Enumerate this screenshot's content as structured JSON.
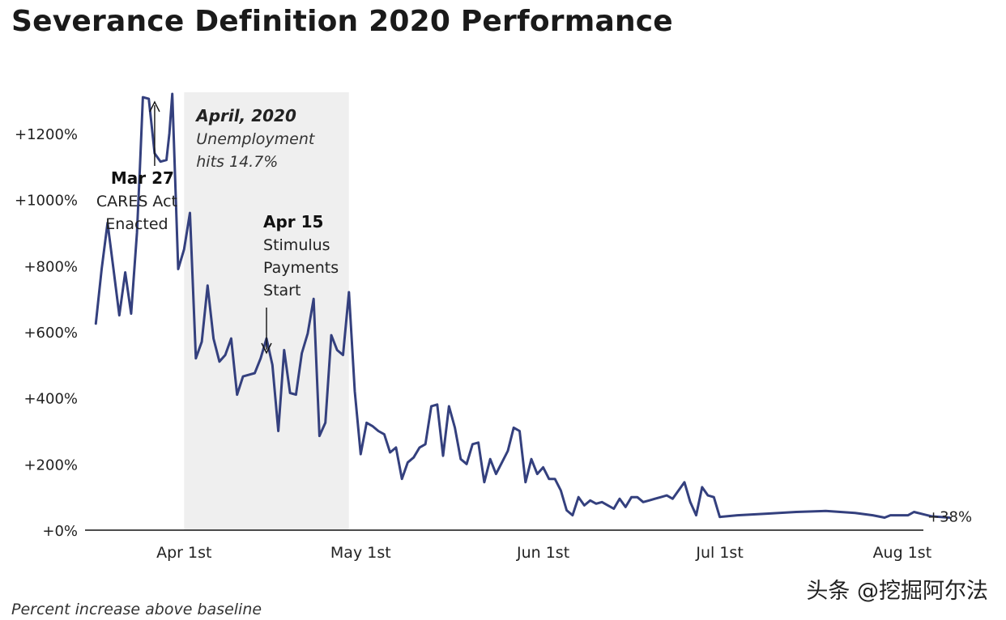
{
  "title": "Severance Definition 2020 Performance",
  "caption": "Percent increase above baseline",
  "watermark": "头条 @挖掘阿尔法",
  "colors": {
    "line": "#34407e",
    "shade": "#efefef",
    "axis": "#111111",
    "text": "#222222"
  },
  "chart_data": {
    "type": "line",
    "title": "Severance Definition 2020 Performance",
    "xlabel": "",
    "ylabel": "Percent increase above baseline",
    "x_unit": "days since Mar 1, 2020",
    "ylim": [
      0,
      1320
    ],
    "y_ticks": [
      {
        "value": 0,
        "label": "+0%"
      },
      {
        "value": 200,
        "label": "+200%"
      },
      {
        "value": 400,
        "label": "+400%"
      },
      {
        "value": 600,
        "label": "+600%"
      },
      {
        "value": 800,
        "label": "+800%"
      },
      {
        "value": 1000,
        "label": "+1000%"
      },
      {
        "value": 1200,
        "label": "+1200%"
      }
    ],
    "x_ticks": [
      {
        "value": 31,
        "label": "Apr 1st"
      },
      {
        "value": 61,
        "label": "May 1st"
      },
      {
        "value": 92,
        "label": "Jun 1st"
      },
      {
        "value": 122,
        "label": "Jul 1st"
      },
      {
        "value": 153,
        "label": "Aug 1st"
      }
    ],
    "shaded_region": {
      "start": 31,
      "end": 59,
      "title": "April, 2020",
      "subtitle": [
        "Unemployment",
        "hits 14.7%"
      ]
    },
    "annotations": [
      {
        "id": "cares",
        "date_label": "Mar 27",
        "lines": [
          "CARES Act",
          "Enacted"
        ],
        "x": 26
      },
      {
        "id": "stimulus",
        "date_label": "Apr 15",
        "lines": [
          "Stimulus",
          "Payments",
          "Start"
        ],
        "x": 45
      }
    ],
    "end_label": "+38%",
    "series": [
      {
        "name": "Severance Definition",
        "points": [
          [
            16,
            625
          ],
          [
            17,
            790
          ],
          [
            18,
            930
          ],
          [
            19,
            790
          ],
          [
            20,
            650
          ],
          [
            21,
            780
          ],
          [
            22,
            655
          ],
          [
            23,
            900
          ],
          [
            23.5,
            1100
          ],
          [
            24,
            1310
          ],
          [
            25,
            1305
          ],
          [
            26,
            1140
          ],
          [
            27,
            1115
          ],
          [
            28,
            1120
          ],
          [
            28.5,
            1200
          ],
          [
            29,
            1320
          ],
          [
            30,
            790
          ],
          [
            31,
            850
          ],
          [
            32,
            960
          ],
          [
            33,
            520
          ],
          [
            34,
            570
          ],
          [
            35,
            740
          ],
          [
            36,
            580
          ],
          [
            37,
            510
          ],
          [
            38,
            530
          ],
          [
            39,
            580
          ],
          [
            40,
            410
          ],
          [
            41,
            465
          ],
          [
            42,
            470
          ],
          [
            43,
            475
          ],
          [
            44,
            520
          ],
          [
            45,
            580
          ],
          [
            46,
            500
          ],
          [
            47,
            300
          ],
          [
            48,
            545
          ],
          [
            49,
            415
          ],
          [
            50,
            410
          ],
          [
            51,
            535
          ],
          [
            52,
            595
          ],
          [
            53,
            700
          ],
          [
            54,
            285
          ],
          [
            55,
            325
          ],
          [
            56,
            590
          ],
          [
            57,
            545
          ],
          [
            58,
            530
          ],
          [
            59,
            720
          ],
          [
            60,
            420
          ],
          [
            61,
            230
          ],
          [
            62,
            325
          ],
          [
            63,
            315
          ],
          [
            64,
            300
          ],
          [
            65,
            290
          ],
          [
            66,
            235
          ],
          [
            67,
            250
          ],
          [
            68,
            155
          ],
          [
            69,
            205
          ],
          [
            70,
            220
          ],
          [
            71,
            250
          ],
          [
            72,
            260
          ],
          [
            73,
            375
          ],
          [
            74,
            380
          ],
          [
            75,
            225
          ],
          [
            76,
            375
          ],
          [
            77,
            310
          ],
          [
            78,
            215
          ],
          [
            79,
            200
          ],
          [
            80,
            260
          ],
          [
            81,
            265
          ],
          [
            82,
            145
          ],
          [
            83,
            215
          ],
          [
            84,
            170
          ],
          [
            85,
            205
          ],
          [
            86,
            240
          ],
          [
            87,
            310
          ],
          [
            88,
            300
          ],
          [
            89,
            145
          ],
          [
            90,
            215
          ],
          [
            91,
            170
          ],
          [
            92,
            190
          ],
          [
            93,
            155
          ],
          [
            94,
            155
          ],
          [
            95,
            120
          ],
          [
            96,
            60
          ],
          [
            97,
            45
          ],
          [
            98,
            100
          ],
          [
            99,
            75
          ],
          [
            100,
            90
          ],
          [
            101,
            80
          ],
          [
            102,
            85
          ],
          [
            103,
            75
          ],
          [
            104,
            65
          ],
          [
            105,
            95
          ],
          [
            106,
            70
          ],
          [
            107,
            100
          ],
          [
            108,
            100
          ],
          [
            109,
            85
          ],
          [
            110,
            90
          ],
          [
            111,
            95
          ],
          [
            112,
            100
          ],
          [
            113,
            105
          ],
          [
            114,
            95
          ],
          [
            115,
            120
          ],
          [
            116,
            145
          ],
          [
            117,
            85
          ],
          [
            118,
            45
          ],
          [
            119,
            130
          ],
          [
            120,
            105
          ],
          [
            121,
            100
          ],
          [
            122,
            40
          ],
          [
            125,
            45
          ],
          [
            130,
            50
          ],
          [
            135,
            55
          ],
          [
            140,
            58
          ],
          [
            145,
            52
          ],
          [
            148,
            45
          ],
          [
            150,
            38
          ],
          [
            151,
            45
          ],
          [
            154,
            45
          ],
          [
            155,
            55
          ],
          [
            158,
            42
          ],
          [
            161,
            38
          ]
        ]
      }
    ]
  }
}
